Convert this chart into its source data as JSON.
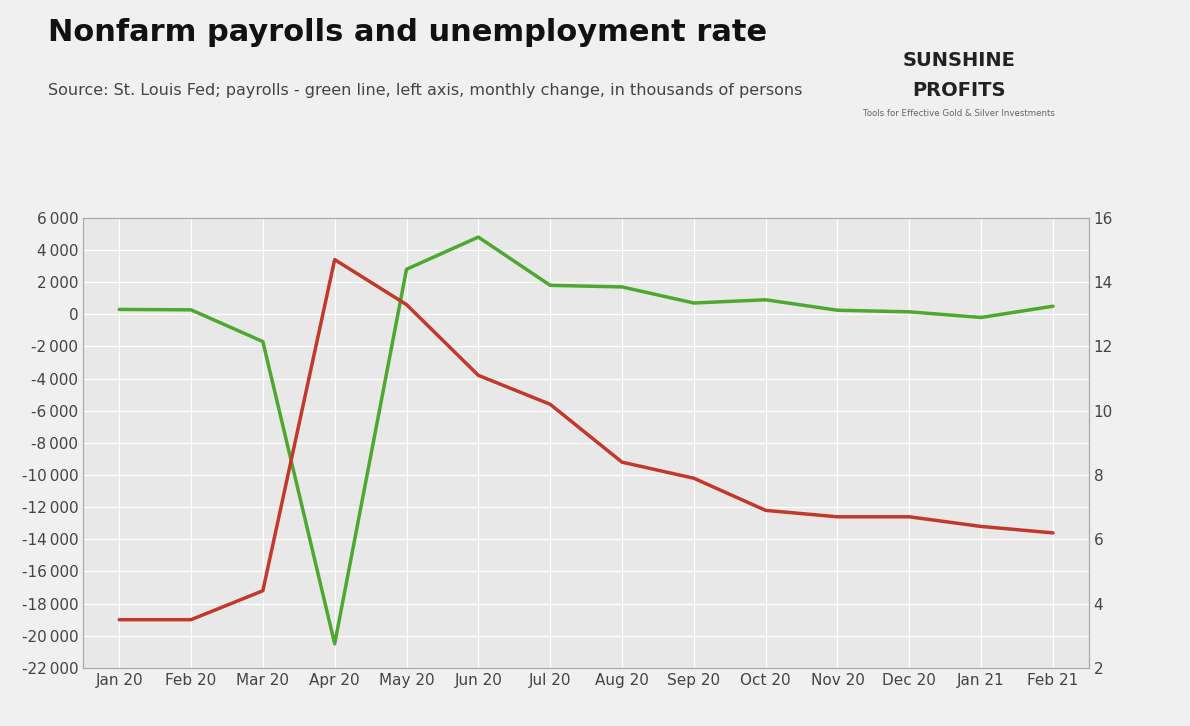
{
  "title": "Nonfarm payrolls and unemployment rate",
  "subtitle": "Source: St. Louis Fed; payrolls - green line, left axis, monthly change, in thousands of persons",
  "x_labels": [
    "Jan 20",
    "Feb 20",
    "Mar 20",
    "Apr 20",
    "May 20",
    "Jun 20",
    "Jul 20",
    "Aug 20",
    "Sep 20",
    "Oct 20",
    "Nov 20",
    "Dec 20",
    "Jan 21",
    "Feb 21"
  ],
  "payrolls": [
    300,
    275,
    -1700,
    -20500,
    2800,
    4800,
    1800,
    1700,
    700,
    900,
    250,
    150,
    -200,
    500
  ],
  "unemployment": [
    3.5,
    3.5,
    4.4,
    14.7,
    13.3,
    11.1,
    10.2,
    8.4,
    7.9,
    6.9,
    6.7,
    6.7,
    6.4,
    6.2
  ],
  "payrolls_color": "#4da830",
  "unemployment_color": "#c0392b",
  "left_ylim": [
    -22000,
    6000
  ],
  "right_ylim": [
    2,
    16
  ],
  "left_yticks": [
    6000,
    4000,
    2000,
    0,
    -2000,
    -4000,
    -6000,
    -8000,
    -10000,
    -12000,
    -14000,
    -16000,
    -18000,
    -20000,
    -22000
  ],
  "right_yticks": [
    16,
    14,
    12,
    10,
    8,
    6,
    4,
    2
  ],
  "fig_bg_color": "#f0f0f0",
  "plot_bg_color": "#e8e8e8",
  "line_width": 2.5,
  "title_fontsize": 22,
  "subtitle_fontsize": 11.5,
  "tick_fontsize": 11,
  "grid_color": "#ffffff",
  "logo_rays": [
    {
      "color": "#8B0000",
      "lw": 5
    },
    {
      "color": "#c0392b",
      "lw": 4
    },
    {
      "color": "#e67e22",
      "lw": 3.5
    },
    {
      "color": "#f0c020",
      "lw": 3
    },
    {
      "color": "#e8e020",
      "lw": 2.5
    }
  ],
  "sunshine_color": "#222222",
  "profits_color": "#222222",
  "logo_sub_color": "#666666"
}
